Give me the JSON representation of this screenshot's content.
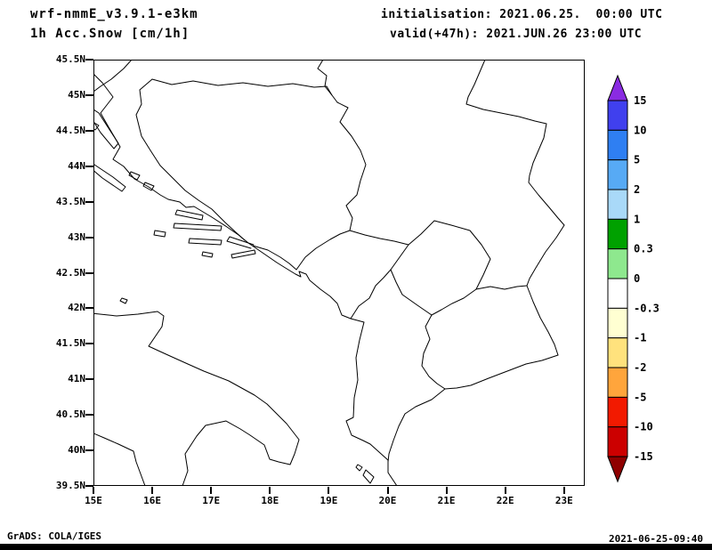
{
  "header": {
    "model_title": "wrf-nmmE_v3.9.1-e3km",
    "field_title": "1h Acc.Snow [cm/1h]",
    "init_line": "initialisation: 2021.06.25.  00:00 UTC",
    "valid_line": "valid(+47h): 2021.JUN.26 23:00 UTC"
  },
  "map": {
    "lat_ticks": [
      "45.5N",
      "45N",
      "44.5N",
      "44N",
      "43.5N",
      "43N",
      "42.5N",
      "42N",
      "41.5N",
      "41N",
      "40.5N",
      "40N",
      "39.5N"
    ],
    "lon_ticks": [
      "15E",
      "16E",
      "17E",
      "18E",
      "19E",
      "20E",
      "21E",
      "22E",
      "23E"
    ]
  },
  "colorbar": {
    "labels": [
      "15",
      "10",
      "5",
      "2",
      "1",
      "0.3",
      "0",
      "-0.3",
      "-1",
      "-2",
      "-5",
      "-10",
      "-15"
    ],
    "segment_colors": [
      "#4040EE",
      "#2F7FF2",
      "#57AAF5",
      "#A9D9F8",
      "#00A100",
      "#8EE88E",
      "#FFFFFF",
      "#FFFFD2",
      "#FFE27D",
      "#FFA53C",
      "#F21A00",
      "#CC0000"
    ],
    "top_triangle_color": "#8A2BE2",
    "bottom_triangle_color": "#8F0000"
  },
  "footer": {
    "credit": "GrADS: COLA/IGES",
    "timestamp": "2021-06-25-09:40"
  }
}
